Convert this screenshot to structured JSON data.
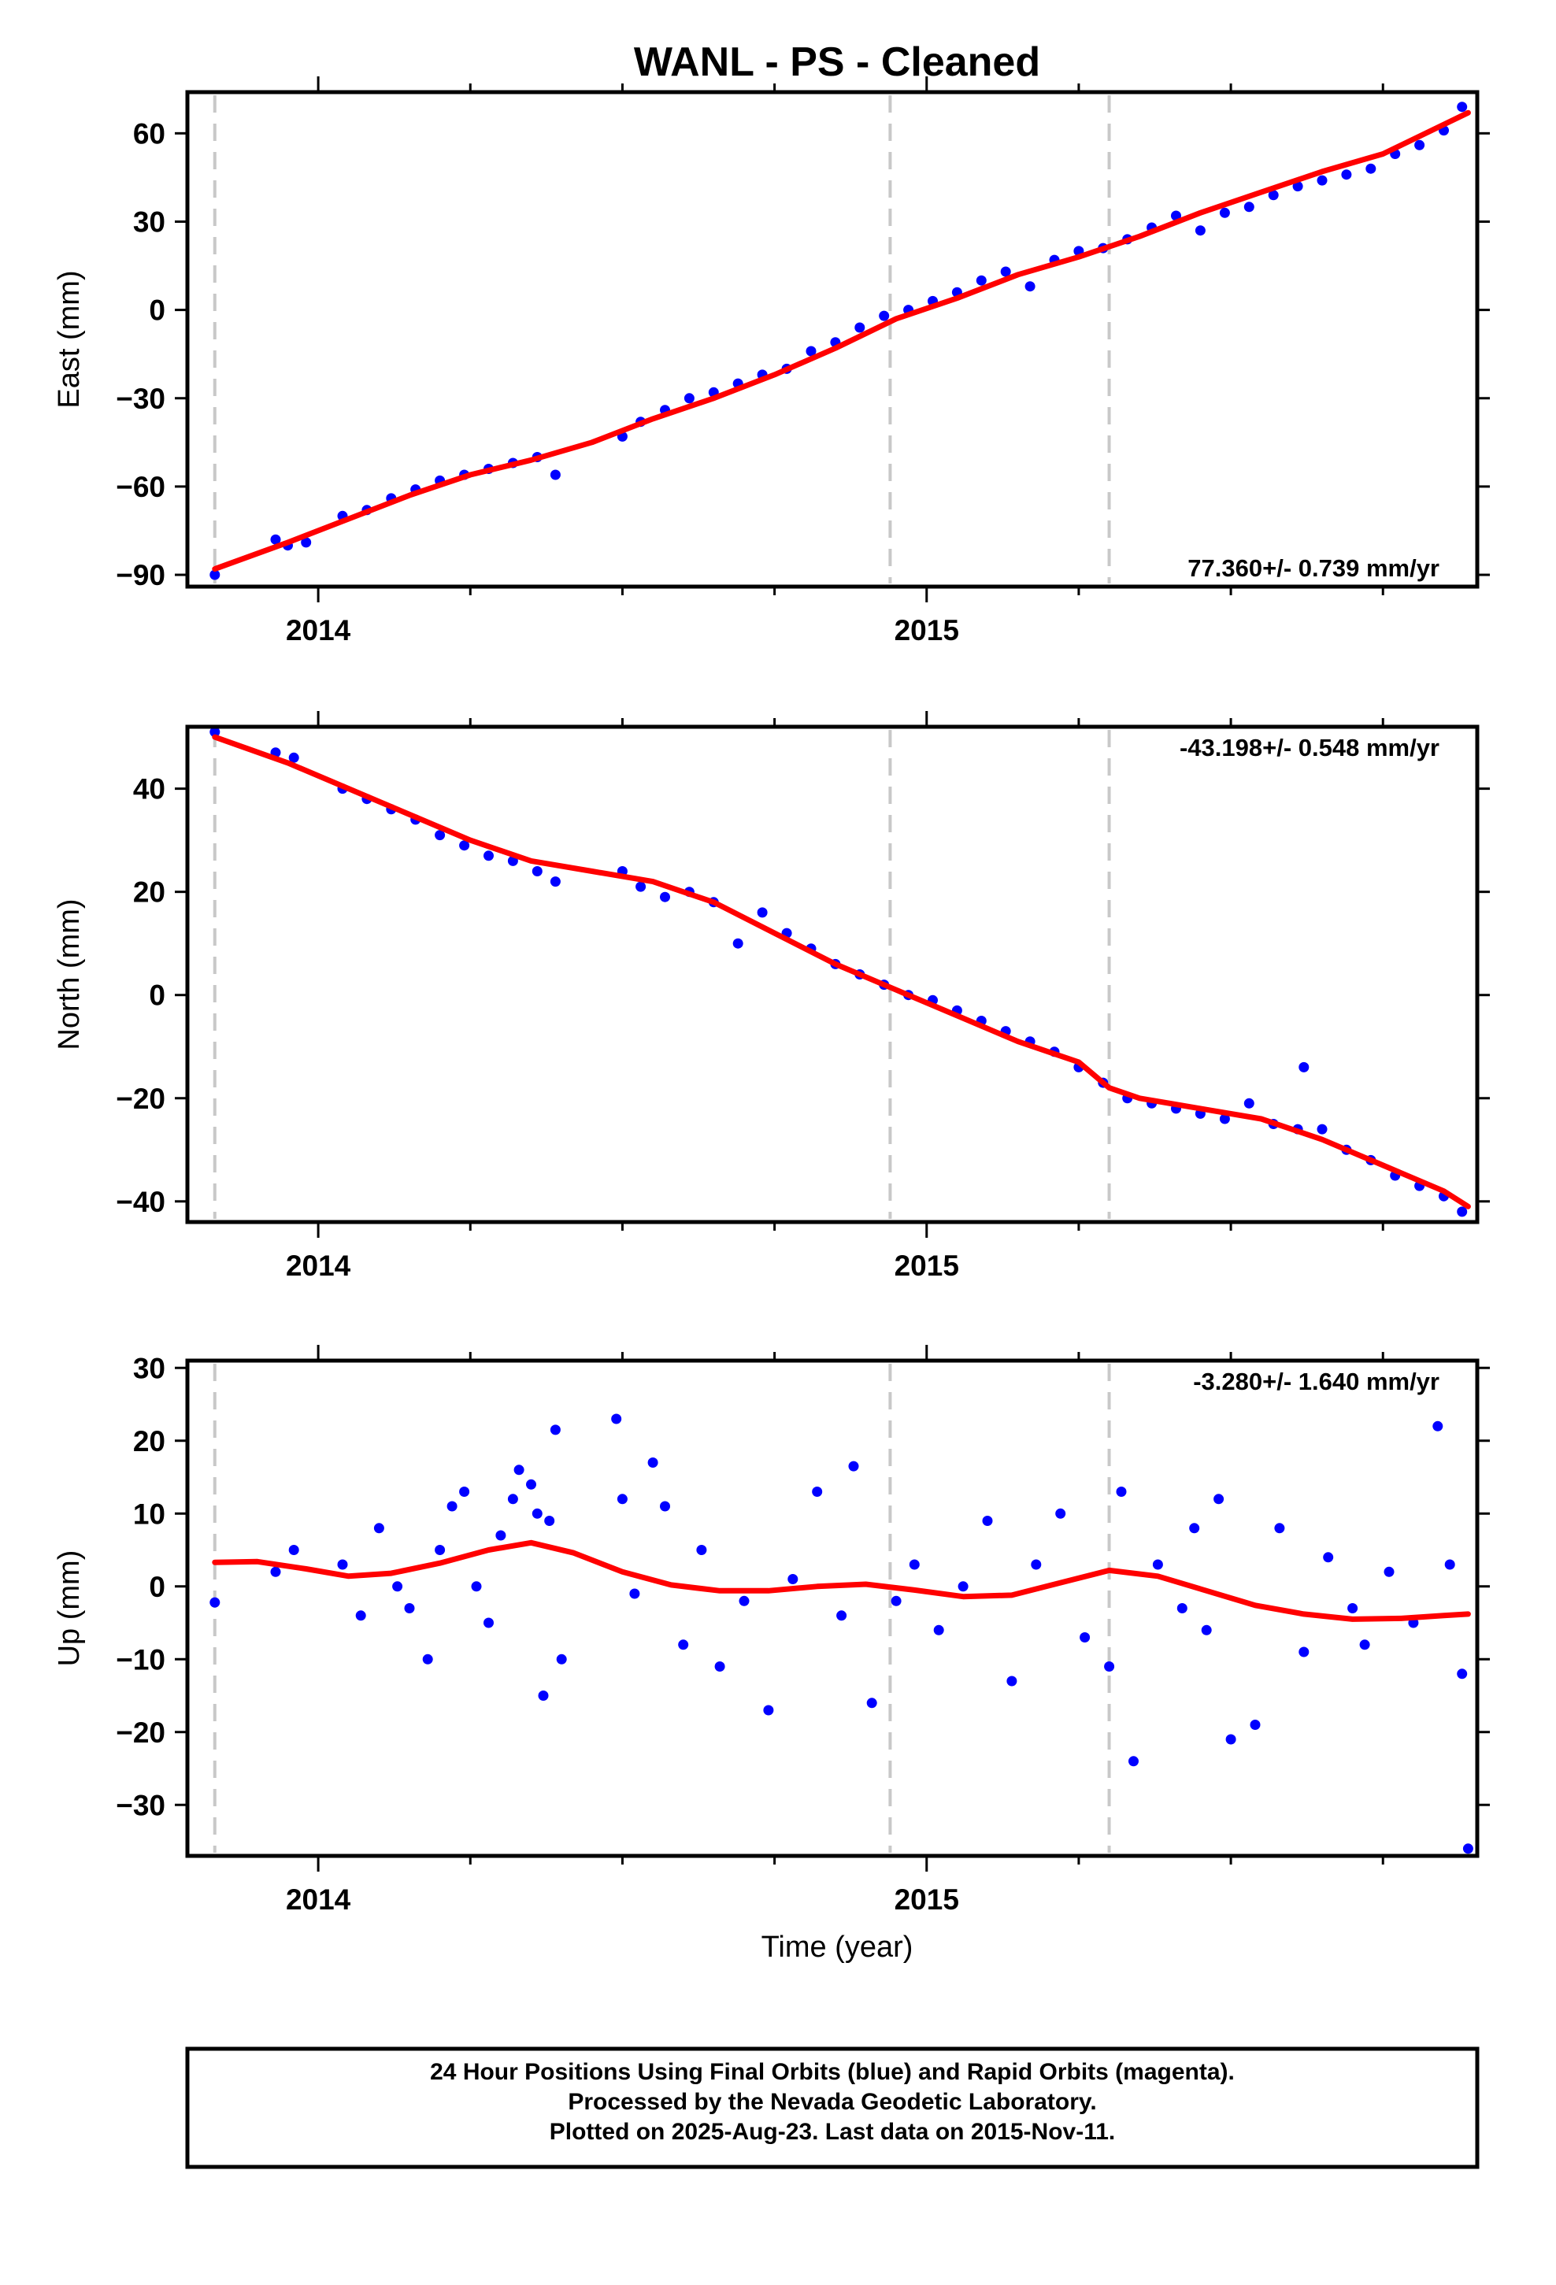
{
  "title": "WANL  - PS - Cleaned",
  "footer": {
    "line1": "24 Hour Positions Using Final Orbits (blue) and Rapid Orbits (magenta).",
    "line2": "Processed by the Nevada Geodetic Laboratory.",
    "line3": "Plotted on 2025-Aug-23. Last data on 2015-Nov-11."
  },
  "colors": {
    "points": "#0000ff",
    "fit": "#ff0000",
    "breaks": "#c8c8c8",
    "frame": "#000000"
  },
  "chart_data": [
    {
      "type": "scatter",
      "component": "East",
      "title": "WANL  - PS - Cleaned",
      "ylabel": "East (mm)",
      "xlabel": "",
      "xlim": [
        2013.785,
        2015.905
      ],
      "ylim": [
        -94,
        74
      ],
      "yticks": [
        -90,
        -60,
        -30,
        0,
        30,
        60
      ],
      "xticks": [
        2014,
        2015
      ],
      "xtick_labels": [
        "2014",
        "2015"
      ],
      "rate_label": "77.360+/- 0.739 mm/yr",
      "rate_position": "bottom-right",
      "breaks": [
        2013.83,
        2014.94,
        2015.3
      ],
      "trend": {
        "start_x": 2013.83,
        "start_y": -88,
        "end_x": 2015.89,
        "end_y": 68
      },
      "fit": {
        "x": [
          2013.83,
          2013.95,
          2014.05,
          2014.15,
          2014.25,
          2014.35,
          2014.45,
          2014.55,
          2014.65,
          2014.75,
          2014.85,
          2014.95,
          2015.05,
          2015.15,
          2015.25,
          2015.35,
          2015.45,
          2015.55,
          2015.65,
          2015.75,
          2015.85,
          2015.89
        ],
        "y": [
          -88,
          -79,
          -71,
          -63,
          -56,
          -51,
          -45,
          -37,
          -30,
          -22,
          -13,
          -3,
          4,
          12,
          18,
          25,
          33,
          40,
          47,
          53,
          63,
          67
        ]
      },
      "points": {
        "x": [
          2013.83,
          2013.93,
          2013.95,
          2013.98,
          2014.04,
          2014.08,
          2014.12,
          2014.16,
          2014.2,
          2014.24,
          2014.28,
          2014.32,
          2014.36,
          2014.39,
          2014.5,
          2014.53,
          2014.57,
          2014.61,
          2014.65,
          2014.69,
          2014.73,
          2014.77,
          2014.81,
          2014.85,
          2014.89,
          2014.93,
          2014.97,
          2015.01,
          2015.05,
          2015.09,
          2015.13,
          2015.17,
          2015.21,
          2015.25,
          2015.29,
          2015.33,
          2015.37,
          2015.41,
          2015.45,
          2015.49,
          2015.53,
          2015.57,
          2015.61,
          2015.65,
          2015.69,
          2015.73,
          2015.77,
          2015.81,
          2015.85,
          2015.88
        ],
        "y": [
          -90,
          -78,
          -80,
          -79,
          -70,
          -68,
          -64,
          -61,
          -58,
          -56,
          -54,
          -52,
          -50,
          -56,
          -43,
          -38,
          -34,
          -30,
          -28,
          -25,
          -22,
          -20,
          -14,
          -11,
          -6,
          -2,
          0,
          3,
          6,
          10,
          13,
          8,
          17,
          20,
          21,
          24,
          28,
          32,
          27,
          33,
          35,
          39,
          42,
          44,
          46,
          48,
          53,
          56,
          61,
          69
        ]
      }
    },
    {
      "type": "scatter",
      "component": "North",
      "ylabel": "North (mm)",
      "xlabel": "",
      "xlim": [
        2013.785,
        2015.905
      ],
      "ylim": [
        -44,
        52
      ],
      "yticks": [
        -40,
        -20,
        0,
        20,
        40
      ],
      "xticks": [
        2014,
        2015
      ],
      "xtick_labels": [
        "2014",
        "2015"
      ],
      "rate_label": "-43.198+/- 0.548 mm/yr",
      "rate_position": "top-right",
      "breaks": [
        2013.83,
        2014.94,
        2015.3
      ],
      "fit": {
        "x": [
          2013.83,
          2013.95,
          2014.05,
          2014.15,
          2014.25,
          2014.35,
          2014.45,
          2014.55,
          2014.65,
          2014.75,
          2014.85,
          2014.95,
          2015.05,
          2015.15,
          2015.25,
          2015.3,
          2015.35,
          2015.45,
          2015.55,
          2015.65,
          2015.75,
          2015.85,
          2015.89
        ],
        "y": [
          50,
          45,
          40,
          35,
          30,
          26,
          24,
          22,
          18,
          12,
          6,
          1,
          -4,
          -9,
          -13,
          -18,
          -20,
          -22,
          -24,
          -28,
          -33,
          -38,
          -41
        ]
      },
      "points": {
        "x": [
          2013.83,
          2013.93,
          2013.96,
          2014.04,
          2014.08,
          2014.12,
          2014.16,
          2014.2,
          2014.24,
          2014.28,
          2014.32,
          2014.36,
          2014.39,
          2014.5,
          2014.53,
          2014.57,
          2014.61,
          2014.65,
          2014.69,
          2014.73,
          2014.77,
          2014.81,
          2014.85,
          2014.89,
          2014.93,
          2014.97,
          2015.01,
          2015.05,
          2015.09,
          2015.13,
          2015.17,
          2015.21,
          2015.25,
          2015.29,
          2015.33,
          2015.37,
          2015.41,
          2015.45,
          2015.49,
          2015.53,
          2015.57,
          2015.61,
          2015.62,
          2015.65,
          2015.69,
          2015.73,
          2015.77,
          2015.81,
          2015.85,
          2015.88
        ],
        "y": [
          51,
          47,
          46,
          40,
          38,
          36,
          34,
          31,
          29,
          27,
          26,
          24,
          22,
          24,
          21,
          19,
          20,
          18,
          10,
          16,
          12,
          9,
          6,
          4,
          2,
          0,
          -1,
          -3,
          -5,
          -7,
          -9,
          -11,
          -14,
          -17,
          -20,
          -21,
          -22,
          -23,
          -24,
          -21,
          -25,
          -26,
          -14,
          -26,
          -30,
          -32,
          -35,
          -37,
          -39,
          -42
        ]
      }
    },
    {
      "type": "scatter",
      "component": "Up",
      "ylabel": "Up (mm)",
      "xlabel": "Time (year)",
      "xlim": [
        2013.785,
        2015.905
      ],
      "ylim": [
        -37,
        31
      ],
      "yticks": [
        -30,
        -20,
        -10,
        0,
        10,
        20,
        30
      ],
      "xticks": [
        2014,
        2015
      ],
      "xtick_labels": [
        "2014",
        "2015"
      ],
      "rate_label": "-3.280+/- 1.640 mm/yr",
      "rate_position": "top-right",
      "breaks": [
        2013.83,
        2014.94,
        2015.3
      ],
      "fit": {
        "x": [
          2013.83,
          2013.9,
          2013.98,
          2014.05,
          2014.12,
          2014.2,
          2014.28,
          2014.35,
          2014.42,
          2014.5,
          2014.58,
          2014.66,
          2014.74,
          2014.82,
          2014.9,
          2014.98,
          2015.06,
          2015.14,
          2015.22,
          2015.3,
          2015.38,
          2015.46,
          2015.54,
          2015.62,
          2015.7,
          2015.78,
          2015.85,
          2015.89
        ],
        "y": [
          3.3,
          3.4,
          2.4,
          1.4,
          1.8,
          3.2,
          5.0,
          6.0,
          4.6,
          2.0,
          0.2,
          -0.6,
          -0.6,
          0,
          0.3,
          -0.5,
          -1.4,
          -1.2,
          0.5,
          2.2,
          1.4,
          -0.6,
          -2.6,
          -3.8,
          -4.5,
          -4.4,
          -4.0,
          -3.8
        ]
      },
      "points": {
        "x": [
          2013.83,
          2013.93,
          2013.96,
          2014.04,
          2014.07,
          2014.1,
          2014.13,
          2014.15,
          2014.18,
          2014.2,
          2014.22,
          2014.24,
          2014.26,
          2014.28,
          2014.3,
          2014.32,
          2014.33,
          2014.35,
          2014.36,
          2014.37,
          2014.38,
          2014.39,
          2014.4,
          2014.49,
          2014.5,
          2014.52,
          2014.55,
          2014.57,
          2014.6,
          2014.63,
          2014.66,
          2014.7,
          2014.74,
          2014.78,
          2014.82,
          2014.86,
          2014.88,
          2014.91,
          2014.95,
          2014.98,
          2015.02,
          2015.06,
          2015.1,
          2015.14,
          2015.18,
          2015.22,
          2015.26,
          2015.3,
          2015.32,
          2015.34,
          2015.38,
          2015.42,
          2015.44,
          2015.46,
          2015.48,
          2015.5,
          2015.54,
          2015.58,
          2015.62,
          2015.66,
          2015.7,
          2015.72,
          2015.76,
          2015.8,
          2015.84,
          2015.86,
          2015.88,
          2015.89
        ],
        "y": [
          -2.2,
          2,
          5,
          3,
          -4,
          8,
          0,
          -3,
          -10,
          5,
          11,
          13,
          0,
          -5,
          7,
          12,
          16,
          14,
          10,
          -15,
          9,
          21.5,
          -10,
          23,
          12,
          -1,
          17,
          11,
          -8,
          5,
          -11,
          -2,
          -17,
          1,
          13,
          -4,
          16.5,
          -16,
          -2,
          3,
          -6,
          0,
          9,
          -13,
          3,
          10,
          -7,
          -11,
          13,
          -24,
          3,
          -3,
          8,
          -6,
          12,
          -21,
          -19,
          8,
          -9,
          4,
          -3,
          -8,
          2,
          -5,
          22,
          3,
          -12,
          -36
        ]
      }
    }
  ]
}
